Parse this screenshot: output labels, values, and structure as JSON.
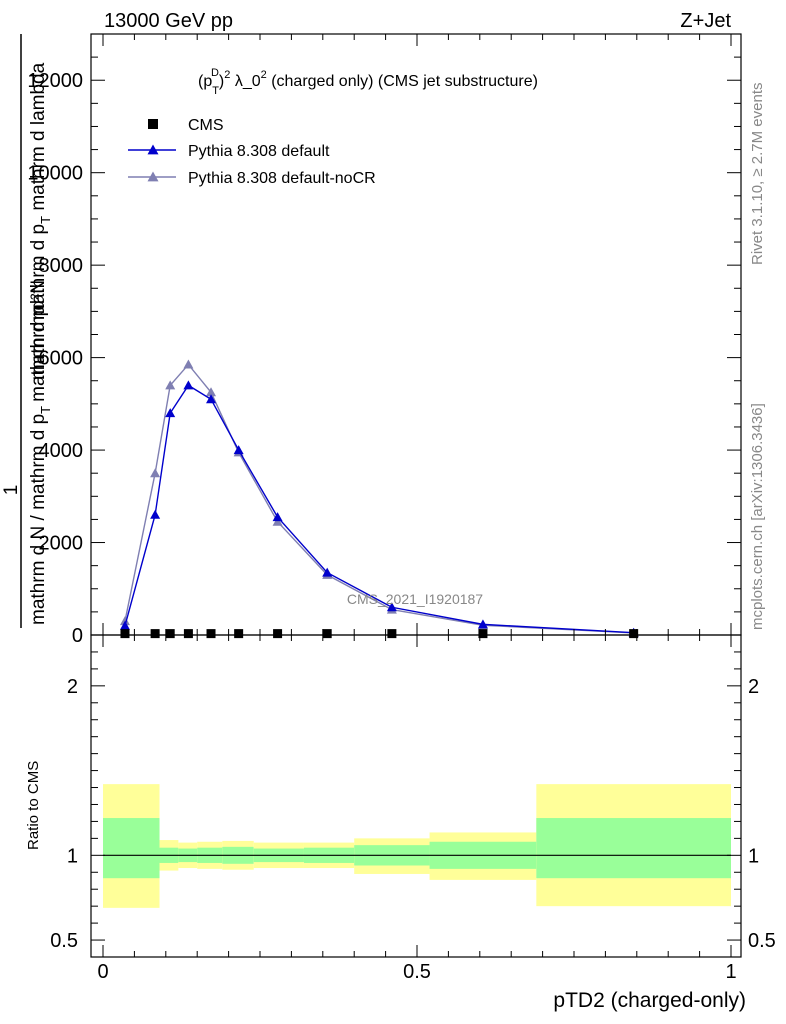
{
  "header": {
    "left": "13000 GeV pp",
    "right": "Z+Jet"
  },
  "side_labels": {
    "top": "Rivet 3.1.10, ≥ 2.7M events",
    "bottom": "mcplots.cern.ch [arXiv:1306.3436]"
  },
  "chart_data": {
    "type": "line",
    "title_parts": {
      "p": "(p",
      "sup_d": "D",
      "sub_t": "T",
      "rest": ")",
      "sup2": "2",
      "lambda": " λ_0",
      "sup3": "2",
      "tail": " (charged only) (CMS jet substructure)"
    },
    "ylabel_main": {
      "numerator_top": "mathrm d²N",
      "numerator_bottom": "mathrm d p",
      "numerator_sub": "T",
      "numerator_tail": " mathrm d lambda",
      "denominator_one": "1",
      "denominator_text": "mathrm d N / mathrm d p",
      "denominator_sub": "T",
      "denominator_tail": "mathrm d p"
    },
    "xlabel": "pTD2 (charged-only)",
    "ylabel_ratio": "Ratio to CMS",
    "watermark": "CMS_2021_I1920187",
    "xlim": [
      0,
      1
    ],
    "ylim": [
      0,
      13000
    ],
    "ratio_ylim": [
      0.4,
      2.3
    ],
    "x_ticks": [
      "0",
      "0.5",
      "1"
    ],
    "y_ticks": [
      "0",
      "2000",
      "4000",
      "6000",
      "8000",
      "10000",
      "12000"
    ],
    "ratio_ticks": [
      "0.5",
      "1",
      "2"
    ],
    "legend": [
      {
        "label": "CMS",
        "color": "#000000",
        "marker": "square"
      },
      {
        "label": "Pythia 8.308 default",
        "color": "#0000cc",
        "marker": "triangle"
      },
      {
        "label": "Pythia 8.308 default-noCR",
        "color": "#7f7fb2",
        "marker": "triangle"
      }
    ],
    "series": [
      {
        "name": "CMS",
        "x": [
          0.035,
          0.083,
          0.107,
          0.136,
          0.172,
          0.216,
          0.278,
          0.357,
          0.46,
          0.605,
          0.845
        ],
        "y": [
          30,
          30,
          30,
          30,
          30,
          30,
          30,
          30,
          30,
          30,
          30
        ]
      },
      {
        "name": "Pythia 8.308 default",
        "x": [
          0.035,
          0.083,
          0.107,
          0.136,
          0.172,
          0.216,
          0.278,
          0.357,
          0.46,
          0.605,
          0.845
        ],
        "y": [
          200,
          2600,
          4800,
          5400,
          5100,
          4000,
          2550,
          1350,
          600,
          230,
          50
        ]
      },
      {
        "name": "Pythia 8.308 default-noCR",
        "x": [
          0.035,
          0.083,
          0.107,
          0.136,
          0.172,
          0.216,
          0.278,
          0.357,
          0.46,
          0.605,
          0.845
        ],
        "y": [
          300,
          3500,
          5400,
          5850,
          5250,
          3950,
          2450,
          1300,
          550,
          210,
          45
        ]
      }
    ],
    "ratio_bands": {
      "x_edges": [
        0.0,
        0.09,
        0.12,
        0.15,
        0.19,
        0.24,
        0.32,
        0.4,
        0.52,
        0.69,
        1.0
      ],
      "yellow_low": [
        0.69,
        0.91,
        0.925,
        0.92,
        0.915,
        0.925,
        0.925,
        0.89,
        0.855,
        0.7
      ],
      "yellow_high": [
        1.42,
        1.09,
        1.075,
        1.08,
        1.085,
        1.075,
        1.075,
        1.1,
        1.135,
        1.42
      ],
      "green_low": [
        0.865,
        0.955,
        0.96,
        0.955,
        0.95,
        0.96,
        0.955,
        0.94,
        0.92,
        0.865
      ],
      "green_high": [
        1.22,
        1.045,
        1.04,
        1.045,
        1.05,
        1.04,
        1.045,
        1.06,
        1.08,
        1.22
      ]
    },
    "colors": {
      "yellow_band": "#ffff99",
      "green_band": "#99ff99"
    }
  }
}
